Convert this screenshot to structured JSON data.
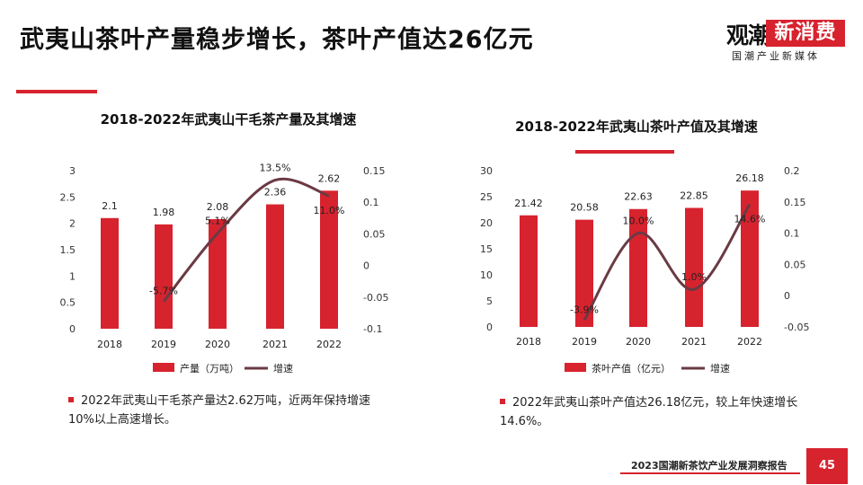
{
  "page": {
    "title": "武夷山茶叶产量稳步增长，茶叶产值达26亿元",
    "page_number": "45",
    "report_name": "2023国潮新茶饮产业发展洞察报告"
  },
  "logo": {
    "text_main": "观潮",
    "text_box": "新消费",
    "text_sub": "国潮产业新媒体"
  },
  "colors": {
    "accent": "#d7232e",
    "bar": "#d7232e",
    "line": "#6b3a44"
  },
  "notes": [
    "2022年武夷山干毛茶产量达2.62万吨，近两年保持增速10%以上高速增长。",
    "2022年武夷山茶叶产值达26.18亿元，较上年快速增长14.6%。"
  ],
  "chart_data": [
    {
      "type": "bar",
      "title": "2018-2022年武夷山干毛茶产量及其增速",
      "categories": [
        "2018",
        "2019",
        "2020",
        "2021",
        "2022"
      ],
      "series": [
        {
          "name": "产量（万吨）",
          "type": "bar",
          "axis": "left",
          "values": [
            2.1,
            1.98,
            2.08,
            2.36,
            2.62
          ],
          "labels": [
            "2.1",
            "1.98",
            "2.08",
            "2.36",
            "2.62"
          ]
        },
        {
          "name": "增速",
          "type": "line",
          "axis": "right",
          "values": [
            null,
            -0.057,
            0.051,
            0.135,
            0.11
          ],
          "labels": [
            "",
            "-5.7%",
            "5.1%",
            "13.5%",
            "11.0%"
          ]
        }
      ],
      "y_left": {
        "min": 0,
        "max": 3,
        "ticks": [
          "0",
          "0.5",
          "1",
          "1.5",
          "2",
          "2.5",
          "3"
        ]
      },
      "y_right": {
        "min": -0.1,
        "max": 0.15,
        "ticks": [
          "-0.1",
          "-0.05",
          "0",
          "0.05",
          "0.1",
          "0.15"
        ]
      },
      "legend": "bottom"
    },
    {
      "type": "bar",
      "title": "2018-2022年武夷山茶叶产值及其增速",
      "categories": [
        "2018",
        "2019",
        "2020",
        "2021",
        "2022"
      ],
      "series": [
        {
          "name": "茶叶产值（亿元）",
          "type": "bar",
          "axis": "left",
          "values": [
            21.42,
            20.58,
            22.63,
            22.85,
            26.18
          ],
          "labels": [
            "21.42",
            "20.58",
            "22.63",
            "22.85",
            "26.18"
          ]
        },
        {
          "name": "增速",
          "type": "line",
          "axis": "right",
          "values": [
            null,
            -0.039,
            0.1,
            0.01,
            0.146
          ],
          "labels": [
            "",
            "-3.9%",
            "10.0%",
            "1.0%",
            "14.6%"
          ]
        }
      ],
      "y_left": {
        "min": 0,
        "max": 30,
        "ticks": [
          "0",
          "5",
          "10",
          "15",
          "20",
          "25",
          "30"
        ]
      },
      "y_right": {
        "min": -0.05,
        "max": 0.2,
        "ticks": [
          "-0.05",
          "0",
          "0.05",
          "0.1",
          "0.15",
          "0.2"
        ]
      },
      "legend": "bottom"
    }
  ]
}
